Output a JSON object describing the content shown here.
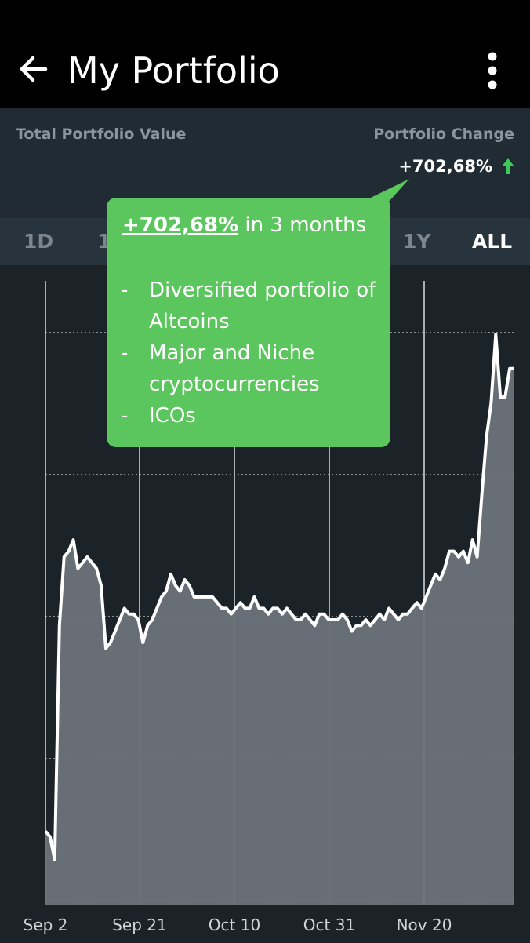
{
  "app_bar": {
    "title": "My Portfolio",
    "back_icon": "arrow-left-icon",
    "menu_icon": "more-vertical-icon"
  },
  "summary": {
    "total_label": "Total Portfolio Value",
    "change_label": "Portfolio Change",
    "change_value": "+702,68%",
    "change_icon": "arrow-up-icon",
    "up_color": "#3ec95a"
  },
  "time_ranges": {
    "items": [
      "1D",
      "1",
      "1Y",
      "ALL"
    ],
    "selected": "ALL"
  },
  "callout": {
    "highlight": "+702,68%",
    "text": " in 3 months",
    "bullets": [
      "Diversified portfolio of Altcoins",
      "Major and Niche cryptocurrencies",
      "ICOs"
    ],
    "color": "#5cc65e"
  },
  "chart_data": {
    "type": "area",
    "x_tick_labels": [
      "Sep 2",
      "Sep 21",
      "Oct 10",
      "Oct 31",
      "Nov 20"
    ],
    "y_tick_labels_shown": false,
    "grid": true,
    "line_color": "#ffffff",
    "fill_color": "#6b737a",
    "values": [
      0.13,
      0.12,
      0.08,
      0.49,
      0.61,
      0.62,
      0.64,
      0.59,
      0.6,
      0.61,
      0.6,
      0.59,
      0.56,
      0.45,
      0.46,
      0.48,
      0.5,
      0.52,
      0.51,
      0.51,
      0.5,
      0.46,
      0.49,
      0.5,
      0.52,
      0.54,
      0.55,
      0.58,
      0.56,
      0.55,
      0.57,
      0.56,
      0.54,
      0.54,
      0.54,
      0.54,
      0.54,
      0.53,
      0.52,
      0.52,
      0.51,
      0.52,
      0.53,
      0.52,
      0.52,
      0.54,
      0.52,
      0.52,
      0.51,
      0.52,
      0.52,
      0.51,
      0.52,
      0.51,
      0.5,
      0.5,
      0.51,
      0.5,
      0.49,
      0.51,
      0.51,
      0.5,
      0.5,
      0.5,
      0.51,
      0.5,
      0.48,
      0.49,
      0.49,
      0.5,
      0.49,
      0.5,
      0.51,
      0.5,
      0.52,
      0.51,
      0.5,
      0.51,
      0.51,
      0.52,
      0.53,
      0.52,
      0.54,
      0.56,
      0.58,
      0.57,
      0.59,
      0.62,
      0.62,
      0.61,
      0.62,
      0.6,
      0.64,
      0.61,
      0.72,
      0.82,
      0.88,
      1.0,
      0.89,
      0.89,
      0.94,
      0.94
    ]
  }
}
